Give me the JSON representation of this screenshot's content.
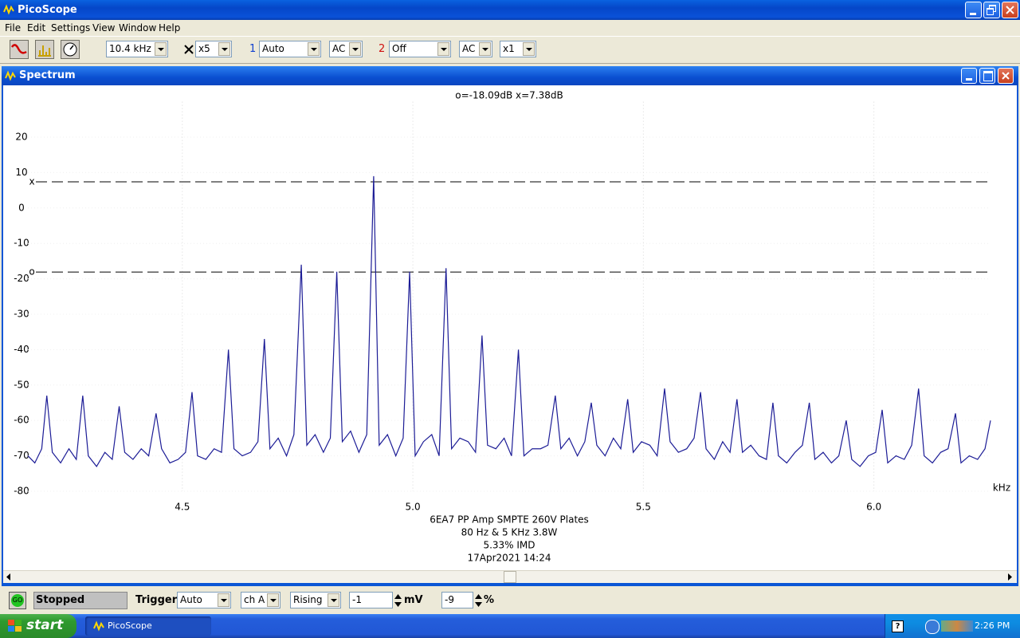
{
  "app": {
    "title": "PicoScope",
    "menu": [
      "File",
      "Edit",
      "Settings",
      "View",
      "Window",
      "Help"
    ]
  },
  "toolbar": {
    "timebase": "10.4 kHz",
    "zoom": "x5",
    "ch1_label": "1",
    "ch1_range": "Auto",
    "ch1_coupling": "AC",
    "ch2_label": "2",
    "ch2_range": "Off",
    "ch2_coupling": "AC",
    "multiplier": "x1"
  },
  "window": {
    "title": "Spectrum"
  },
  "chart_data": {
    "type": "line",
    "cursor_readout": "o=-18.09dB  x=7.38dB",
    "cursors": [
      {
        "name": "x",
        "value": 7.38
      },
      {
        "name": "o",
        "value": -18.09
      }
    ],
    "annotations": [
      "6EA7 PP Amp SMPTE 260V Plates",
      "80 Hz & 5 KHz 3.8W",
      "5.33% IMD",
      "17Apr2021  14:24"
    ],
    "xlabel": "kHz",
    "color": "#1c1c96",
    "grid": true,
    "xlim": [
      4.165,
      6.253
    ],
    "ylim": [
      -80,
      30
    ],
    "xticks": [
      {
        "value": 4.5,
        "label": "4.5"
      },
      {
        "value": 5.0,
        "label": "5.0"
      },
      {
        "value": 5.5,
        "label": "5.5"
      },
      {
        "value": 6.0,
        "label": "6.0"
      }
    ],
    "yticks": [
      20,
      10,
      0,
      -10,
      -20,
      -30,
      -40,
      -50,
      -60,
      -70,
      -80
    ],
    "x": [
      4.165,
      4.18,
      4.195,
      4.206,
      4.218,
      4.236,
      4.254,
      4.27,
      4.284,
      4.296,
      4.314,
      4.332,
      4.348,
      4.363,
      4.375,
      4.393,
      4.411,
      4.427,
      4.443,
      4.455,
      4.473,
      4.491,
      4.507,
      4.521,
      4.533,
      4.551,
      4.569,
      4.585,
      4.6,
      4.612,
      4.63,
      4.648,
      4.664,
      4.678,
      4.69,
      4.708,
      4.726,
      4.742,
      4.758,
      4.77,
      4.788,
      4.806,
      4.821,
      4.835,
      4.847,
      4.865,
      4.883,
      4.9,
      4.915,
      4.927,
      4.945,
      4.963,
      4.979,
      4.993,
      5.005,
      5.023,
      5.041,
      5.057,
      5.072,
      5.084,
      5.102,
      5.12,
      5.136,
      5.15,
      5.162,
      5.18,
      5.198,
      5.214,
      5.229,
      5.241,
      5.259,
      5.277,
      5.293,
      5.309,
      5.321,
      5.339,
      5.357,
      5.373,
      5.387,
      5.399,
      5.417,
      5.435,
      5.451,
      5.466,
      5.478,
      5.496,
      5.514,
      5.53,
      5.546,
      5.558,
      5.576,
      5.594,
      5.61,
      5.624,
      5.636,
      5.654,
      5.672,
      5.688,
      5.703,
      5.715,
      5.733,
      5.751,
      5.767,
      5.781,
      5.793,
      5.811,
      5.829,
      5.845,
      5.86,
      5.872,
      5.89,
      5.908,
      5.924,
      5.94,
      5.952,
      5.97,
      5.988,
      6.004,
      6.018,
      6.03,
      6.048,
      6.066,
      6.082,
      6.097,
      6.109,
      6.127,
      6.145,
      6.161,
      6.177,
      6.189,
      6.207,
      6.225,
      6.241,
      6.253
    ],
    "values": [
      -70,
      -72,
      -68,
      -53,
      -69,
      -72,
      -68,
      -71,
      -53,
      -70,
      -73,
      -69,
      -71,
      -56,
      -69,
      -71,
      -68,
      -70,
      -58,
      -68,
      -72,
      -71,
      -69,
      -52,
      -70,
      -71,
      -68,
      -69,
      -40,
      -68,
      -70,
      -69,
      -66,
      -37,
      -68,
      -65,
      -70,
      -64,
      -16,
      -67,
      -64,
      -69,
      -65,
      -18,
      -66,
      -63,
      -69,
      -64,
      9,
      -67,
      -64,
      -70,
      -65,
      -18,
      -70,
      -66,
      -64,
      -70,
      -17,
      -68,
      -65,
      -66,
      -69,
      -36,
      -67,
      -68,
      -65,
      -70,
      -40,
      -70,
      -68,
      -68,
      -67,
      -53,
      -68,
      -65,
      -70,
      -66,
      -55,
      -67,
      -70,
      -65,
      -68,
      -54,
      -69,
      -66,
      -67,
      -70,
      -51,
      -66,
      -69,
      -68,
      -65,
      -52,
      -68,
      -71,
      -66,
      -69,
      -54,
      -69,
      -67,
      -70,
      -71,
      -55,
      -70,
      -72,
      -69,
      -67,
      -55,
      -71,
      -69,
      -72,
      -70,
      -60,
      -71,
      -73,
      -70,
      -69,
      -57,
      -72,
      -70,
      -71,
      -67,
      -51,
      -70,
      -72,
      -69,
      -68,
      -58,
      -72,
      -70,
      -71,
      -68,
      -60
    ]
  },
  "status": {
    "go": "GO",
    "state": "Stopped",
    "trigger_label": "Trigger",
    "trigger_mode": "Auto",
    "trigger_channel": "ch A",
    "trigger_edge": "Rising",
    "threshold": "-1",
    "threshold_unit": "mV",
    "delay": "-9",
    "delay_unit": "%"
  },
  "taskbar": {
    "start": "start",
    "task": "PicoScope",
    "clock": "2:26 PM"
  }
}
